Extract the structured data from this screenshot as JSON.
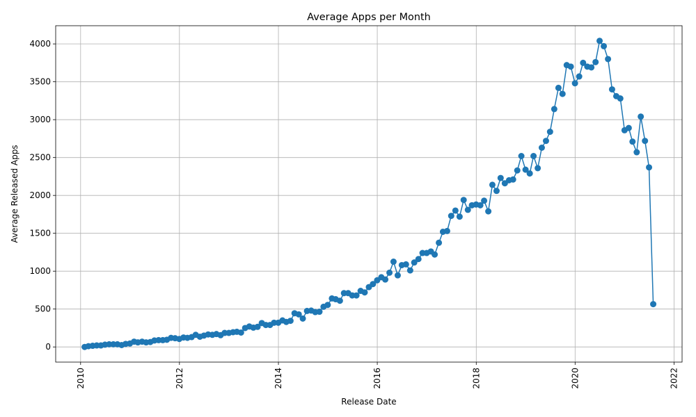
{
  "chart_data": {
    "type": "line",
    "title": "Average Apps per Month",
    "xlabel": "Release Date",
    "ylabel": "Average Released Apps",
    "x_ticks": [
      "2010",
      "2012",
      "2014",
      "2016",
      "2018",
      "2020",
      "2022"
    ],
    "y_ticks": [
      "0",
      "500",
      "1000",
      "1500",
      "2000",
      "2500",
      "3000",
      "3500",
      "4000"
    ],
    "xlim": [
      "2009-07-01",
      "2022-03-01"
    ],
    "ylim": [
      -200,
      4240
    ],
    "grid": true,
    "marker": "circle",
    "color": "#1f77b4",
    "series": [
      {
        "x": [
          "2010-01-31",
          "2010-02-28",
          "2010-03-31",
          "2010-04-30",
          "2010-05-31",
          "2010-06-30",
          "2010-07-31",
          "2010-08-31",
          "2010-09-30",
          "2010-10-31",
          "2010-11-30",
          "2010-12-31",
          "2011-01-31",
          "2011-02-28",
          "2011-03-31",
          "2011-04-30",
          "2011-05-31",
          "2011-06-30",
          "2011-07-31",
          "2011-08-31",
          "2011-09-30",
          "2011-10-31",
          "2011-11-30",
          "2011-12-31",
          "2012-01-31",
          "2012-02-29",
          "2012-03-31",
          "2012-04-30",
          "2012-05-31",
          "2012-06-30",
          "2012-07-31",
          "2012-08-31",
          "2012-09-30",
          "2012-10-31",
          "2012-11-30",
          "2012-12-31",
          "2013-01-31",
          "2013-02-28",
          "2013-03-31",
          "2013-04-30",
          "2013-05-31",
          "2013-06-30",
          "2013-07-31",
          "2013-08-31",
          "2013-09-30",
          "2013-10-31",
          "2013-11-30",
          "2013-12-31",
          "2014-01-31",
          "2014-02-28",
          "2014-03-31",
          "2014-04-30",
          "2014-05-31",
          "2014-06-30",
          "2014-07-31",
          "2014-08-31",
          "2014-09-30",
          "2014-10-31",
          "2014-11-30",
          "2014-12-31",
          "2015-01-31",
          "2015-02-28",
          "2015-03-31",
          "2015-04-30",
          "2015-05-31",
          "2015-06-30",
          "2015-07-31",
          "2015-08-31",
          "2015-09-30",
          "2015-10-31",
          "2015-11-30",
          "2015-12-31",
          "2016-01-31",
          "2016-02-29",
          "2016-03-31",
          "2016-04-30",
          "2016-05-31",
          "2016-06-30",
          "2016-07-31",
          "2016-08-31",
          "2016-09-30",
          "2016-10-31",
          "2016-11-30",
          "2016-12-31",
          "2017-01-31",
          "2017-02-28",
          "2017-03-31",
          "2017-04-30",
          "2017-05-31",
          "2017-06-30",
          "2017-07-31",
          "2017-08-31",
          "2017-09-30",
          "2017-10-31",
          "2017-11-30",
          "2017-12-31",
          "2018-01-31",
          "2018-02-28",
          "2018-03-31",
          "2018-04-30",
          "2018-05-31",
          "2018-06-30",
          "2018-07-31",
          "2018-08-31",
          "2018-09-30",
          "2018-10-31",
          "2018-11-30",
          "2018-12-31",
          "2019-01-31",
          "2019-02-28",
          "2019-03-31",
          "2019-04-30",
          "2019-05-31",
          "2019-06-30",
          "2019-07-31",
          "2019-08-31",
          "2019-09-30",
          "2019-10-31",
          "2019-11-30",
          "2019-12-31",
          "2020-01-31",
          "2020-02-29",
          "2020-03-31",
          "2020-04-30",
          "2020-05-31",
          "2020-06-30",
          "2020-07-31",
          "2020-08-31",
          "2020-09-30",
          "2020-10-31",
          "2020-11-30",
          "2020-12-31",
          "2021-01-31",
          "2021-02-28",
          "2021-03-31",
          "2021-04-30",
          "2021-05-31",
          "2021-06-30",
          "2021-07-31"
        ],
        "values": [
          0,
          10,
          15,
          20,
          20,
          30,
          35,
          35,
          35,
          25,
          40,
          45,
          70,
          60,
          70,
          60,
          65,
          85,
          90,
          90,
          95,
          120,
          115,
          105,
          125,
          120,
          130,
          160,
          135,
          150,
          165,
          160,
          170,
          155,
          185,
          185,
          195,
          200,
          190,
          250,
          270,
          255,
          265,
          315,
          290,
          290,
          320,
          320,
          350,
          330,
          345,
          445,
          430,
          375,
          475,
          480,
          460,
          465,
          530,
          555,
          640,
          630,
          610,
          710,
          710,
          680,
          680,
          740,
          720,
          790,
          830,
          880,
          920,
          890,
          980,
          1125,
          945,
          1080,
          1090,
          1010,
          1115,
          1160,
          1240,
          1240,
          1260,
          1220,
          1375,
          1520,
          1530,
          1730,
          1800,
          1720,
          1940,
          1810,
          1870,
          1880,
          1870,
          1930,
          1790,
          2140,
          2060,
          2230,
          2160,
          2200,
          2210,
          2330,
          2520,
          2340,
          2290,
          2520,
          2360,
          2630,
          2720,
          2840,
          3140,
          3420,
          3340,
          3720,
          3700,
          3480,
          3570,
          3750,
          3700,
          3690,
          3760,
          4040,
          3970,
          3800,
          3400,
          3310,
          3280,
          2860,
          2890,
          2710,
          2570,
          3040,
          2720,
          2370,
          565
        ]
      }
    ]
  }
}
